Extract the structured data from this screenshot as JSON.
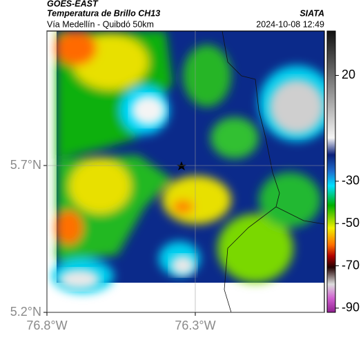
{
  "header": {
    "satellite": "GOES-EAST",
    "product": "Temperatura de Brillo CH13",
    "source": "SIATA",
    "region": "Vía Medellín - Quibdó 50km",
    "datetime": "2024-10-08 12:49"
  },
  "map": {
    "latlim": [
      5.2,
      6.158
    ],
    "lonlim": [
      -76.8,
      -75.865
    ],
    "lat_ticks": [
      {
        "value": 5.7,
        "label": "5.7°N"
      },
      {
        "value": 5.2,
        "label": "5.2°N"
      }
    ],
    "lon_ticks": [
      {
        "value": -76.8,
        "label": "76.8°W"
      },
      {
        "value": -76.3,
        "label": "76.3°W"
      }
    ]
  },
  "colorbar": {
    "lim": [
      -92,
      41
    ],
    "ticks": [
      20,
      -30,
      -50,
      -70,
      -90
    ]
  }
}
